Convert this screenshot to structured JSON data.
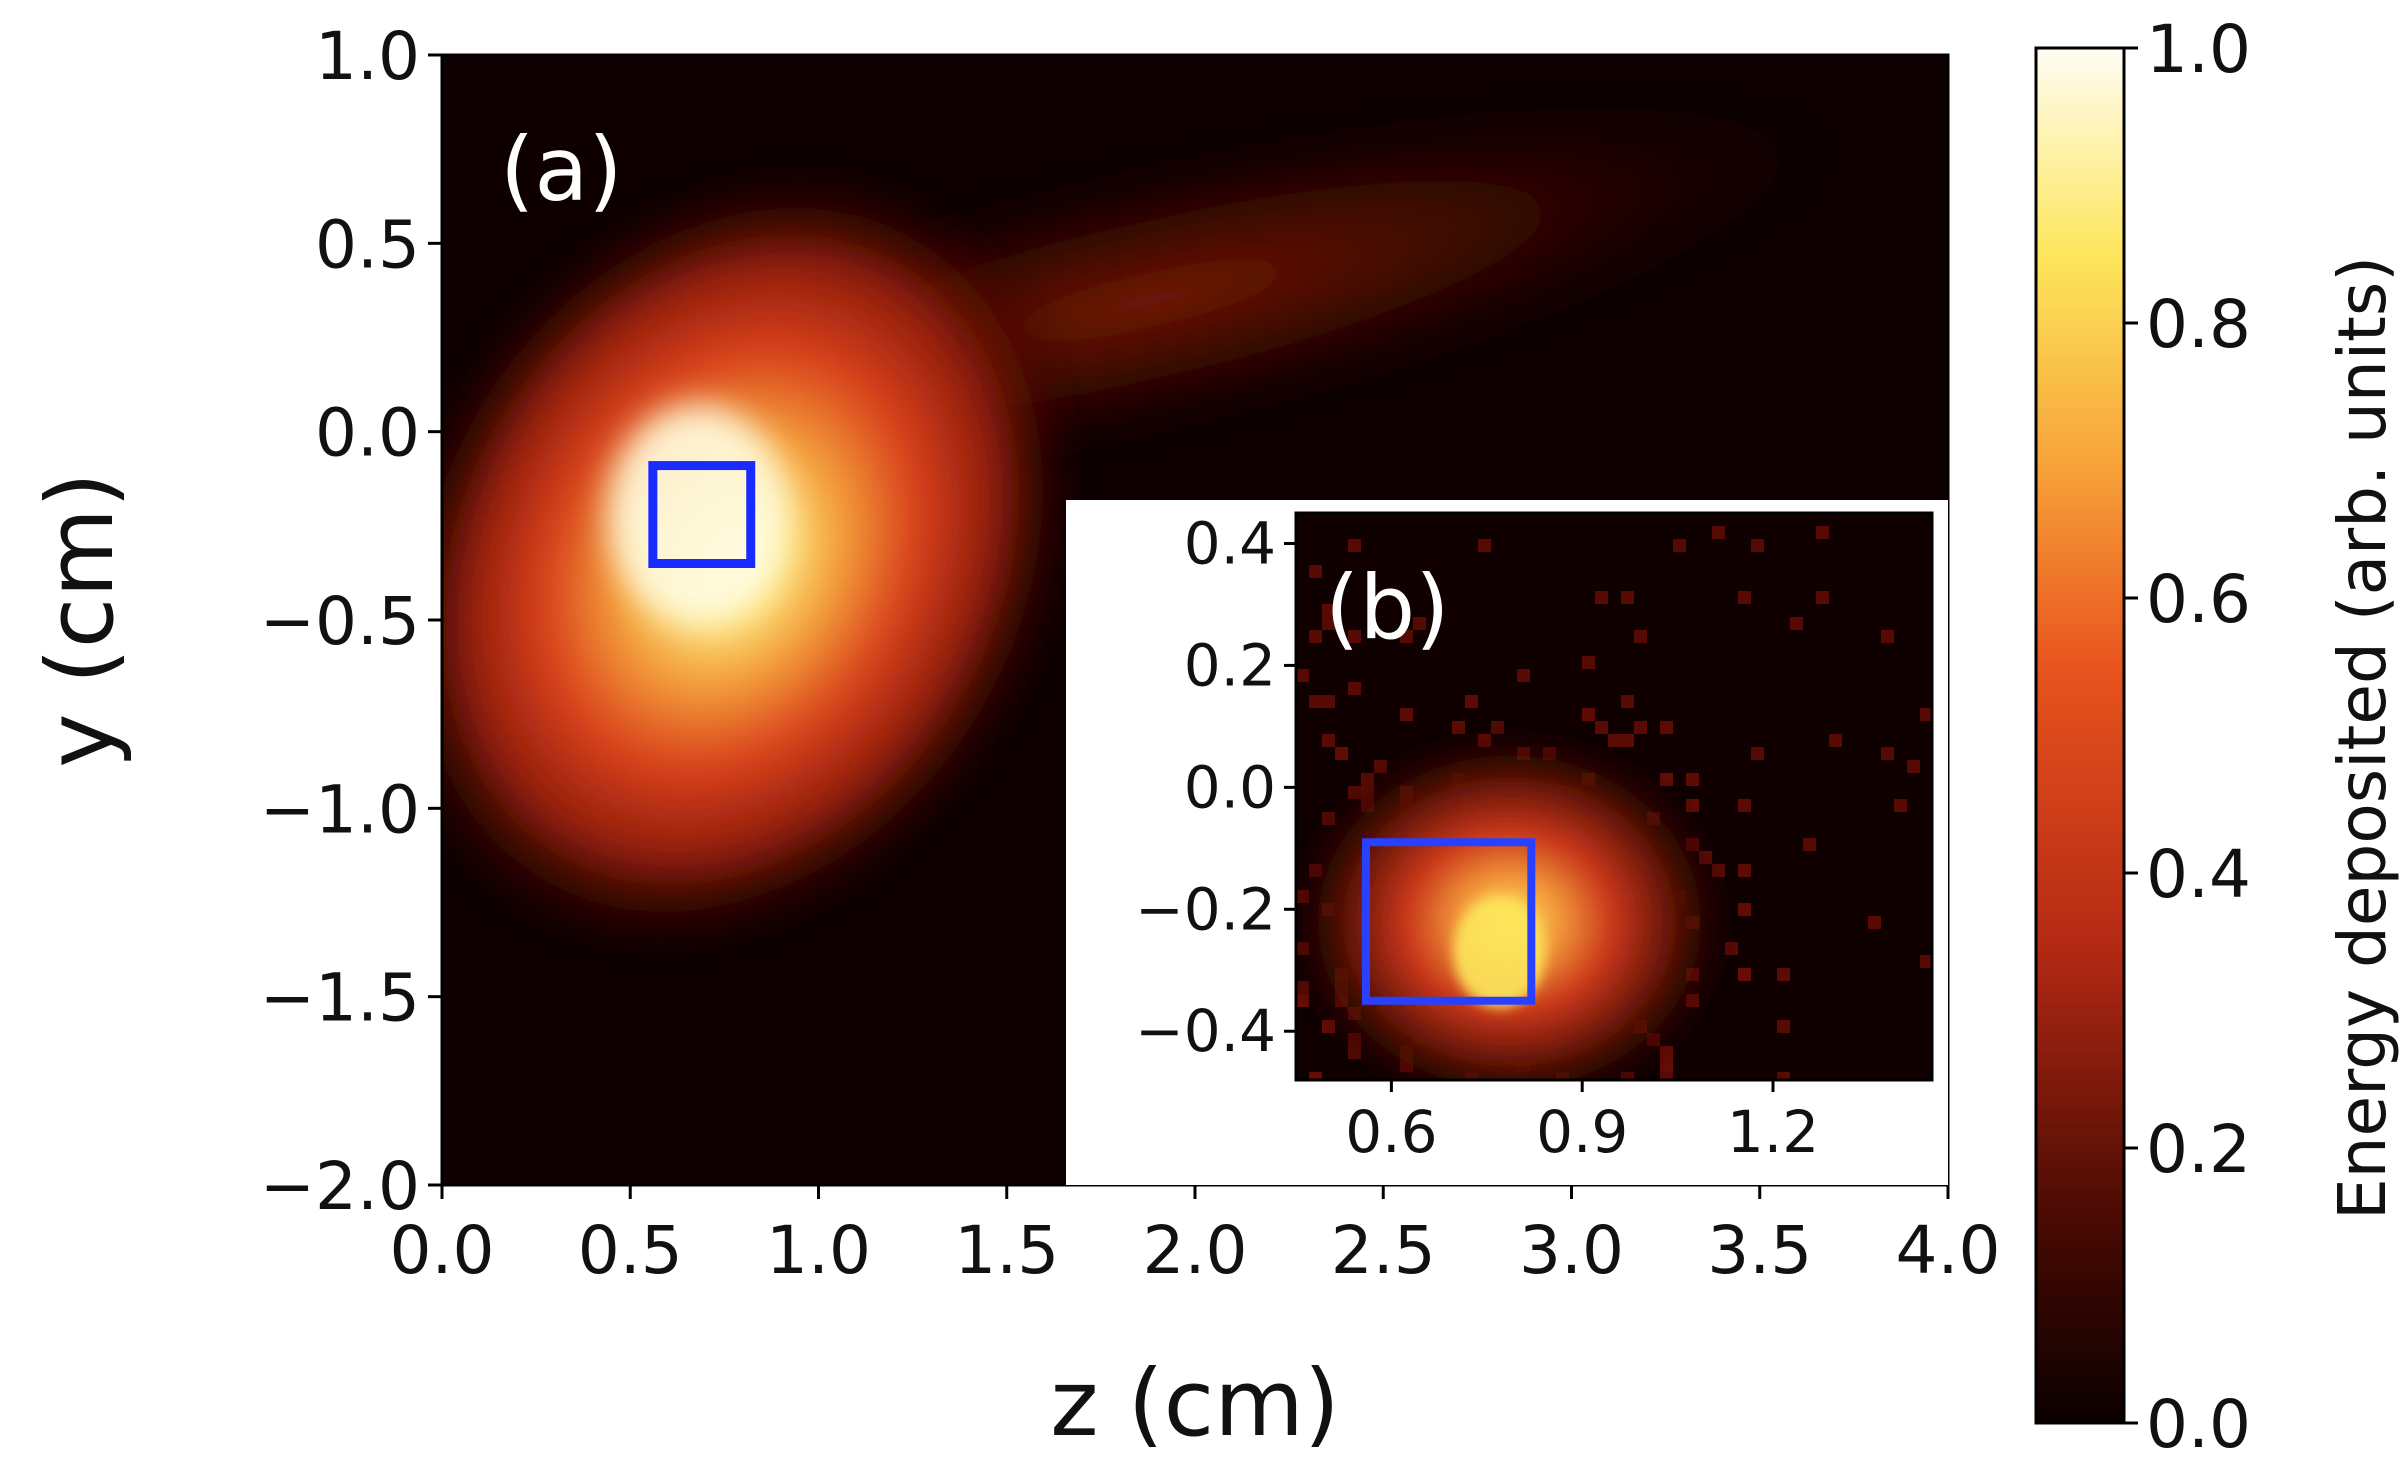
{
  "chart_data": [
    {
      "type": "heatmap",
      "panel": "(a)",
      "xlabel": "z (cm)",
      "ylabel": "y (cm)",
      "xlim": [
        0.0,
        4.0
      ],
      "ylim": [
        -2.0,
        1.0
      ],
      "xticks": [
        0.0,
        0.5,
        1.0,
        1.5,
        2.0,
        2.5,
        3.0,
        3.5,
        4.0
      ],
      "xtick_labels": [
        "0.0",
        "0.5",
        "1.0",
        "1.5",
        "2.0",
        "2.5",
        "3.0",
        "3.5",
        "4.0"
      ],
      "yticks": [
        1.0,
        0.5,
        0.0,
        -0.5,
        -1.0,
        -1.5,
        -2.0
      ],
      "ytick_labels": [
        "1.0",
        "0.5",
        "0.0",
        "−0.5",
        "−1.0",
        "−1.5",
        "−2.0"
      ],
      "colormap": "hot",
      "peak": {
        "z": 0.68,
        "y": -0.22,
        "value": 1.0
      },
      "highlight_box": {
        "z": [
          0.56,
          0.82
        ],
        "y": [
          -0.35,
          -0.09
        ],
        "color": "#1a2bff"
      }
    },
    {
      "type": "heatmap",
      "panel": "(b)",
      "role": "inset",
      "xlim": [
        0.45,
        1.45
      ],
      "ylim": [
        -0.48,
        0.45
      ],
      "xticks": [
        0.6,
        0.9,
        1.2
      ],
      "xtick_labels": [
        "0.6",
        "0.9",
        "1.2"
      ],
      "yticks": [
        0.4,
        0.2,
        0.0,
        -0.2,
        -0.4
      ],
      "ytick_labels": [
        "0.4",
        "0.2",
        "0.0",
        "−0.2",
        "−0.4"
      ],
      "colormap": "hot",
      "peak": {
        "z": 0.77,
        "y": -0.27,
        "value": 0.85
      },
      "highlight_box": {
        "z": [
          0.56,
          0.82
        ],
        "y": [
          -0.35,
          -0.09
        ],
        "color": "#2a40ff"
      }
    }
  ],
  "colorbar": {
    "label": "Energy deposited (arb. units)",
    "range": [
      0.0,
      1.0
    ],
    "ticks": [
      0.0,
      0.2,
      0.4,
      0.6,
      0.8,
      1.0
    ],
    "tick_labels": [
      "0.0",
      "0.2",
      "0.4",
      "0.6",
      "0.8",
      "1.0"
    ]
  }
}
